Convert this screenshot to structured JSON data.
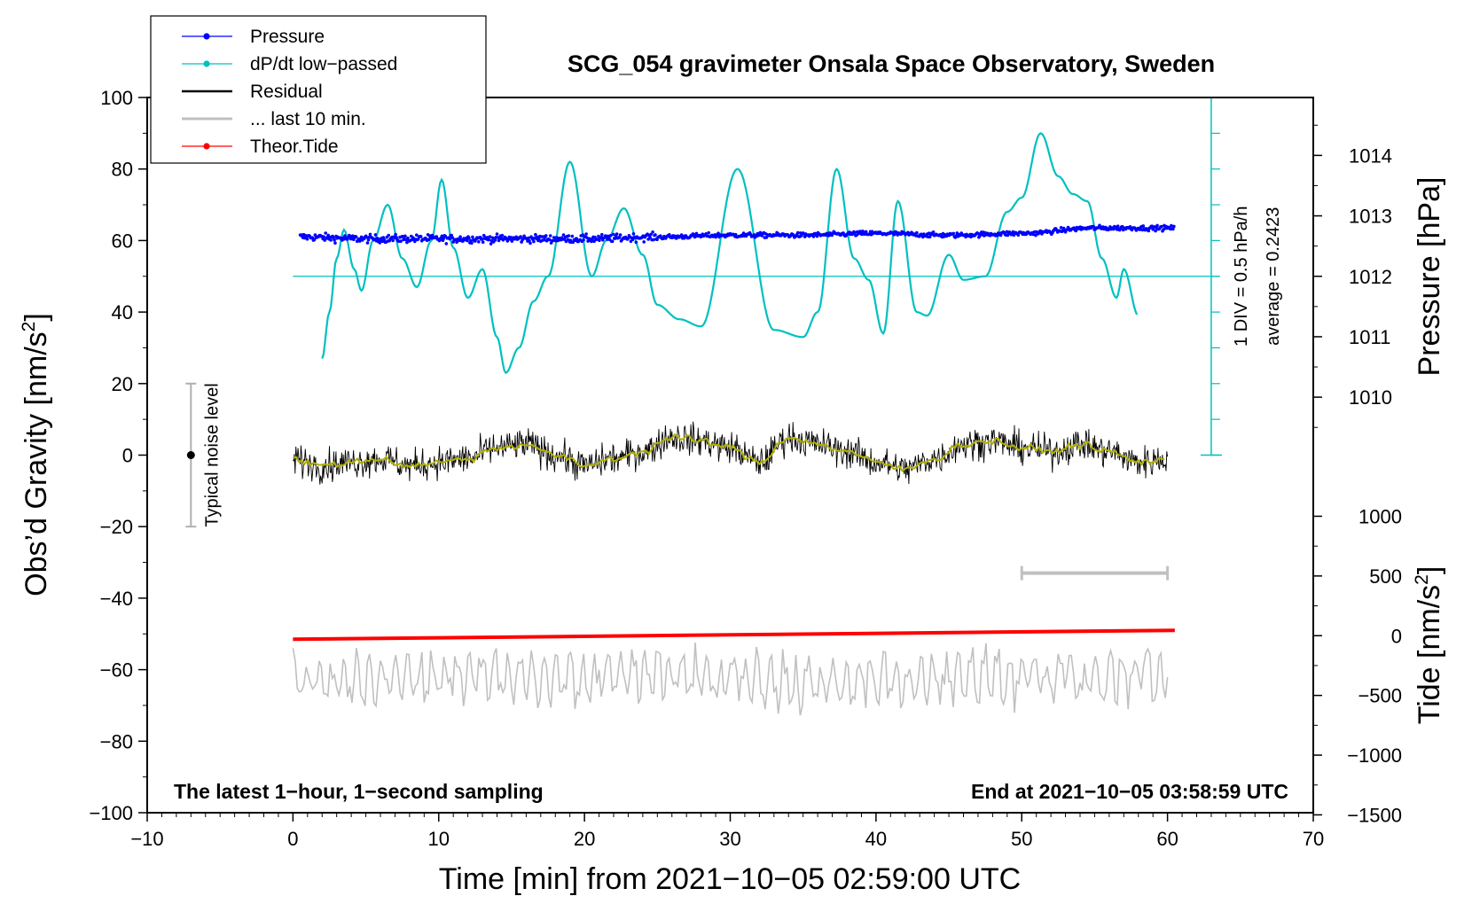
{
  "chart_data": {
    "type": "line",
    "title": "SCG_054 gravimeter Onsala Space Observatory, Sweden",
    "xlabel": "Time [min] from 2021−10−05 02:59:00 UTC",
    "ylabel_left": "Obs’d Gravity [nm/s",
    "ylabel_left_sup": "2",
    "ylabel_left_end": "]",
    "ylabel_right_pressure": "Pressure [hPa]",
    "ylabel_right_tide": "Tide [nm/s",
    "ylabel_right_tide_sup": "2",
    "ylabel_right_tide_end": "]",
    "xlim": [
      -10,
      70
    ],
    "ylim": [
      -100,
      100
    ],
    "x_ticks": [
      "−10",
      "0",
      "10",
      "20",
      "30",
      "40",
      "50",
      "60",
      "70"
    ],
    "y_ticks": [
      "100",
      "80",
      "60",
      "40",
      "20",
      "0",
      "−20",
      "−40",
      "−60",
      "−80",
      "−100"
    ],
    "pressure_ticks": [
      "1014",
      "1013",
      "1012",
      "1011",
      "1010"
    ],
    "pressure_tick_values": [
      1014,
      1013,
      1012,
      1011,
      1010
    ],
    "pressure_axis": {
      "ref_value": 1012,
      "ref_gravity": 50,
      "gravity_per_hpa": 16.9
    },
    "tide_ticks": [
      "1000",
      "500",
      "0",
      "−500",
      "−1000",
      "−1500"
    ],
    "tide_tick_values": [
      1000,
      500,
      0,
      -500,
      -1000,
      -1500
    ],
    "tide_axis": {
      "ref_value": 0,
      "ref_gravity": -50.5,
      "gravity_per_unit": 0.0334
    },
    "legend": [
      {
        "label": "Pressure",
        "color": "#0000ff",
        "marker": true
      },
      {
        "label": "dP/dt low−passed",
        "color": "#00c0c0",
        "marker": true
      },
      {
        "label": "Residual",
        "color": "#000000",
        "marker": false
      },
      {
        "label": "... last 10 min.",
        "color": "#c0c0c0",
        "marker": false
      },
      {
        "label": "Theor.Tide",
        "color": "#ff0000",
        "marker": true
      }
    ],
    "annotations": {
      "noise_label": "Typical noise level",
      "noise_center": 0,
      "noise_halfwidth": 20,
      "noise_x": -7,
      "dpdt_div": "1 DIV = 0.5 hPa/h",
      "dpdt_avg": "average = 0.2423",
      "dpdt_ref_y": 50,
      "bottom_left": "The latest 1−hour, 1−second sampling",
      "bottom_right": "End at 2021−10−05 03:58:59 UTC",
      "last10_bar": [
        50,
        60
      ]
    },
    "series": [
      {
        "name": "dP/dt low-passed",
        "color": "#00c0c0",
        "x": [
          2,
          2.5,
          3,
          3.5,
          4.2,
          4.7,
          5.5,
          6.5,
          7.5,
          8.5,
          9.5,
          10.2,
          11,
          12,
          13,
          14,
          14.6,
          15.5,
          16.5,
          17.5,
          19,
          20.5,
          21.5,
          22.7,
          24,
          25,
          26.5,
          28,
          30.5,
          33,
          35,
          36,
          37.3,
          38.5,
          39.5,
          40.5,
          41.5,
          42.8,
          43.5,
          45,
          46,
          47.5,
          49,
          50,
          51.3,
          52.5,
          53.5,
          54.5,
          55.5,
          56.5,
          57,
          58
        ],
        "y": [
          27,
          40,
          55,
          63,
          52,
          46,
          60,
          70,
          55,
          47,
          60,
          77,
          58,
          44,
          52,
          33,
          23,
          30,
          43,
          50,
          82,
          50,
          60,
          69,
          56,
          42,
          38,
          36,
          80,
          35,
          33,
          40,
          80,
          55,
          49,
          34,
          71,
          40,
          39,
          56,
          49,
          50,
          68,
          72,
          90,
          78,
          73,
          71,
          55,
          44,
          52,
          39
        ]
      },
      {
        "name": "Pressure",
        "color": "#0000ff",
        "x": [
          0.5,
          5,
          10,
          15,
          20,
          25,
          30,
          35,
          40,
          45,
          50,
          55,
          60.5
        ],
        "y": [
          61,
          60.5,
          60.5,
          60.5,
          60.5,
          61,
          61.5,
          61.5,
          62,
          61.5,
          62,
          63.5,
          63.5
        ]
      },
      {
        "name": "Residual smoothed",
        "color": "#b0b000",
        "x": [
          0,
          2,
          4,
          6,
          8,
          10,
          12,
          14,
          16,
          18,
          20,
          22,
          24,
          26,
          28,
          30,
          32,
          34,
          36,
          38,
          40,
          42,
          44,
          46,
          48,
          50,
          52,
          54,
          56,
          58,
          60
        ],
        "y": [
          -1,
          -3,
          -2,
          -1,
          -3,
          -2,
          -1,
          2,
          3,
          0,
          -3,
          -1,
          1,
          5,
          4,
          2,
          -2,
          5,
          3,
          1,
          -2,
          -4,
          -1,
          3,
          4,
          2,
          1,
          3,
          1,
          -2,
          -1
        ]
      },
      {
        "name": "Residual",
        "color": "#000000",
        "x": [
          0,
          2,
          4,
          6,
          8,
          10,
          12,
          14,
          16,
          18,
          20,
          22,
          24,
          26,
          28,
          30,
          32,
          34,
          36,
          38,
          40,
          42,
          44,
          46,
          48,
          50,
          52,
          54,
          56,
          58,
          60
        ],
        "y": [
          -1,
          -3,
          -2,
          -1,
          -3,
          -2,
          -1,
          2,
          3,
          0,
          -3,
          -1,
          1,
          5,
          4,
          2,
          -2,
          5,
          3,
          1,
          -2,
          -4,
          -1,
          3,
          4,
          2,
          1,
          3,
          1,
          -2,
          -1
        ]
      },
      {
        "name": "... last 10 min.",
        "color": "#c0c0c0",
        "x": [
          0,
          60
        ],
        "y": [
          -62,
          -62
        ]
      },
      {
        "name": "Theor.Tide",
        "color": "#ff0000",
        "x": [
          0,
          60.5
        ],
        "y": [
          -51.5,
          -49
        ]
      }
    ]
  }
}
